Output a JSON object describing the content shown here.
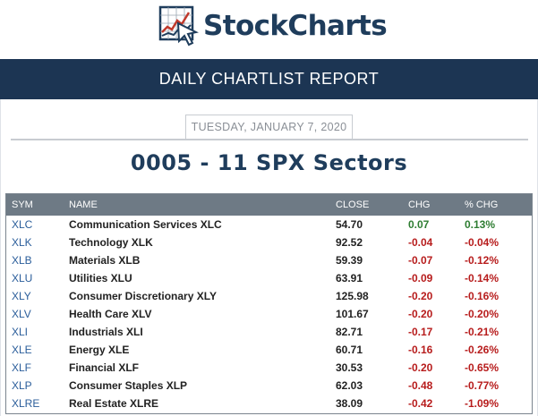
{
  "logo": {
    "text": "StockCharts",
    "icon": "chart-cursor-logo-icon"
  },
  "banner": {
    "title": "DAILY CHARTLIST REPORT"
  },
  "report": {
    "date": "TUESDAY, JANUARY 7, 2020",
    "list_title": "0005 - 11 SPX Sectors"
  },
  "colors": {
    "banner": "#1c3553",
    "header": "#6e7a85",
    "positive": "#2e7d32",
    "negative": "#b71c1c",
    "symbol": "#2a5d9a"
  },
  "table": {
    "headers": {
      "sym": "SYM",
      "name": "NAME",
      "close": "CLOSE",
      "chg": "CHG",
      "pct": "% CHG"
    },
    "rows": [
      {
        "sym": "XLC",
        "name": "Communication Services XLC",
        "close": "54.70",
        "chg": "0.07",
        "pct": "0.13%",
        "dir": "pos"
      },
      {
        "sym": "XLK",
        "name": "Technology XLK",
        "close": "92.52",
        "chg": "-0.04",
        "pct": "-0.04%",
        "dir": "neg"
      },
      {
        "sym": "XLB",
        "name": "Materials XLB",
        "close": "59.39",
        "chg": "-0.07",
        "pct": "-0.12%",
        "dir": "neg"
      },
      {
        "sym": "XLU",
        "name": "Utilities XLU",
        "close": "63.91",
        "chg": "-0.09",
        "pct": "-0.14%",
        "dir": "neg"
      },
      {
        "sym": "XLY",
        "name": "Consumer Discretionary XLY",
        "close": "125.98",
        "chg": "-0.20",
        "pct": "-0.16%",
        "dir": "neg"
      },
      {
        "sym": "XLV",
        "name": "Health Care XLV",
        "close": "101.67",
        "chg": "-0.20",
        "pct": "-0.20%",
        "dir": "neg"
      },
      {
        "sym": "XLI",
        "name": "Industrials XLI",
        "close": "82.71",
        "chg": "-0.17",
        "pct": "-0.21%",
        "dir": "neg"
      },
      {
        "sym": "XLE",
        "name": "Energy XLE",
        "close": "60.71",
        "chg": "-0.16",
        "pct": "-0.26%",
        "dir": "neg"
      },
      {
        "sym": "XLF",
        "name": "Financial XLF",
        "close": "30.53",
        "chg": "-0.20",
        "pct": "-0.65%",
        "dir": "neg"
      },
      {
        "sym": "XLP",
        "name": "Consumer Staples XLP",
        "close": "62.03",
        "chg": "-0.48",
        "pct": "-0.77%",
        "dir": "neg"
      },
      {
        "sym": "XLRE",
        "name": "Real Estate XLRE",
        "close": "38.09",
        "chg": "-0.42",
        "pct": "-1.09%",
        "dir": "neg"
      }
    ]
  }
}
